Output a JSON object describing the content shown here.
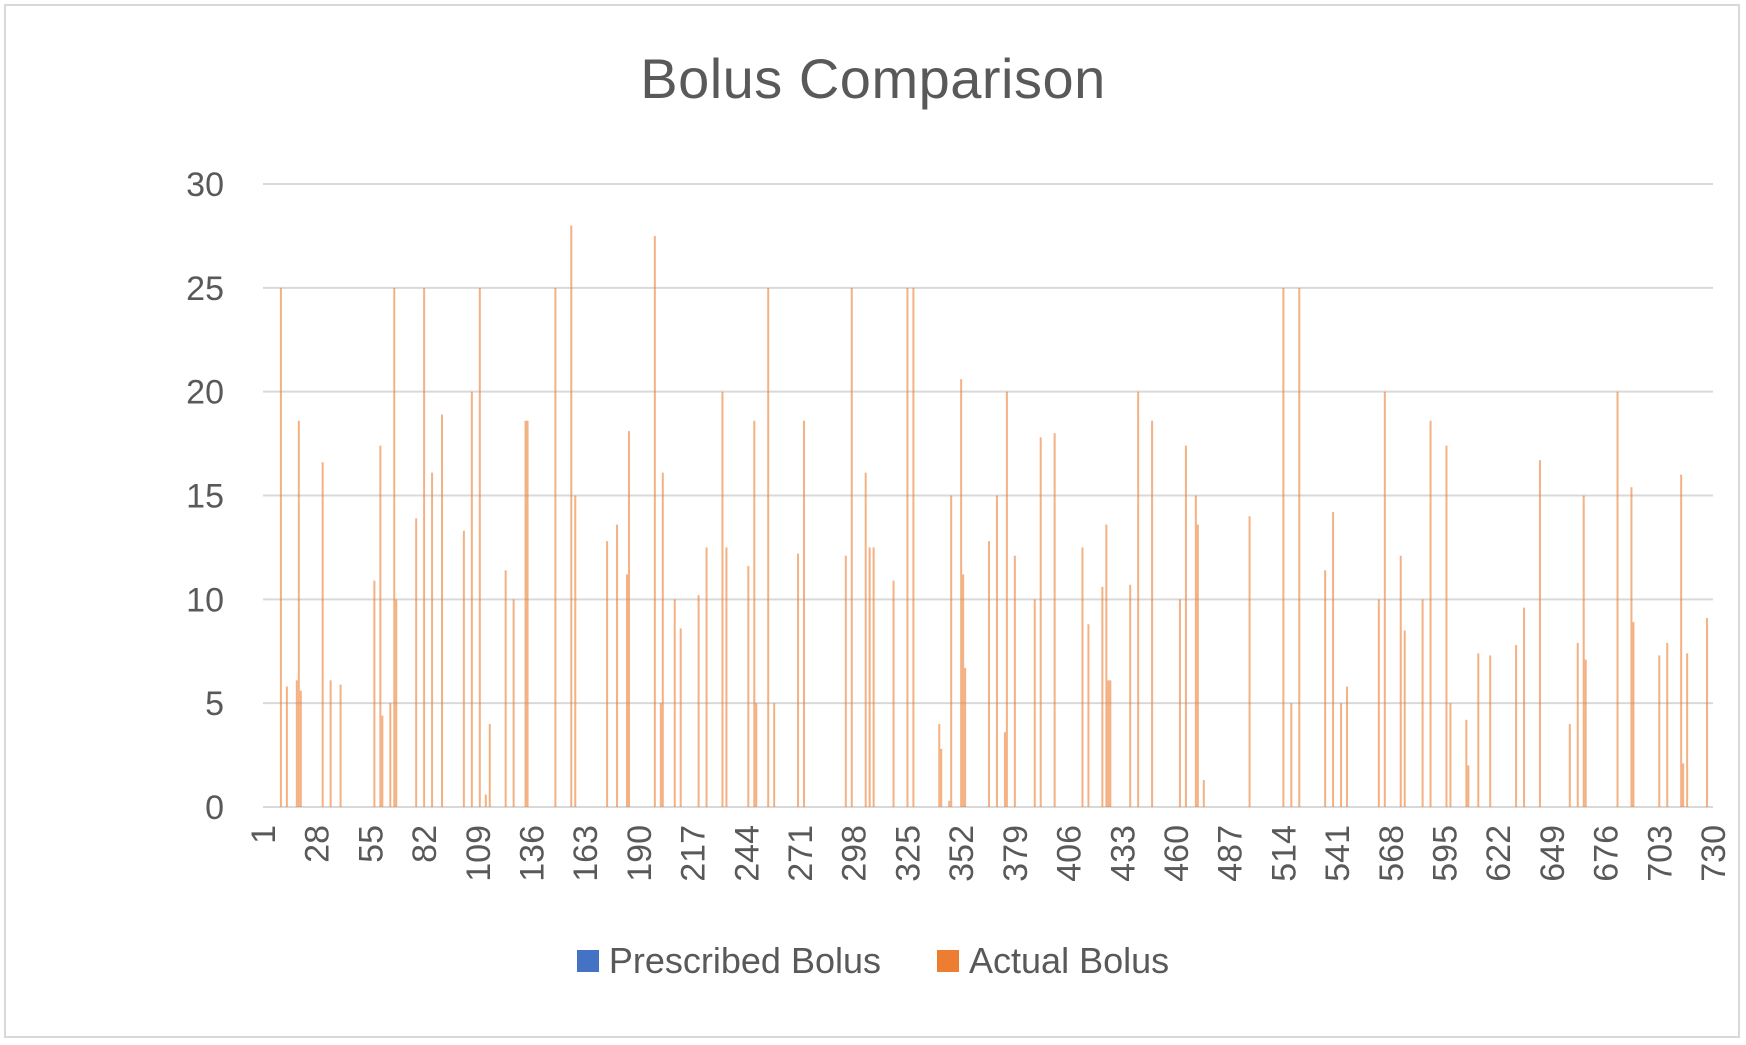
{
  "chart_data": {
    "type": "bar",
    "title": "Bolus Comparison",
    "xlabel": "",
    "ylabel": "",
    "ylim": [
      0,
      30
    ],
    "yticks": [
      0,
      5,
      10,
      15,
      20,
      25,
      30
    ],
    "xlim": [
      1,
      730
    ],
    "xticks": [
      1,
      28,
      55,
      82,
      109,
      136,
      163,
      190,
      217,
      244,
      271,
      298,
      325,
      352,
      379,
      406,
      433,
      460,
      487,
      514,
      541,
      568,
      595,
      622,
      649,
      676,
      703,
      730
    ],
    "grid": true,
    "legend_position": "bottom",
    "series": [
      {
        "name": "Prescribed Bolus",
        "color": "#4472C4",
        "points": []
      },
      {
        "name": "Actual Bolus",
        "color": "#ED7D31",
        "points": [
          [
            10,
            25
          ],
          [
            13,
            5.8
          ],
          [
            18,
            6.1
          ],
          [
            19,
            18.6
          ],
          [
            20,
            5.6
          ],
          [
            31,
            16.6
          ],
          [
            35,
            6.1
          ],
          [
            40,
            5.9
          ],
          [
            57,
            10.9
          ],
          [
            60,
            17.4
          ],
          [
            61,
            4.4
          ],
          [
            65,
            5
          ],
          [
            67,
            25
          ],
          [
            68,
            10
          ],
          [
            78,
            13.9
          ],
          [
            82,
            25
          ],
          [
            86,
            16.1
          ],
          [
            91,
            18.9
          ],
          [
            102,
            13.3
          ],
          [
            106,
            20
          ],
          [
            110,
            25
          ],
          [
            113,
            0.6
          ],
          [
            115,
            4
          ],
          [
            123,
            11.4
          ],
          [
            127,
            10
          ],
          [
            133,
            18.6
          ],
          [
            134,
            18.6
          ],
          [
            148,
            25
          ],
          [
            156,
            28
          ],
          [
            158,
            15
          ],
          [
            174,
            12.8
          ],
          [
            179,
            13.6
          ],
          [
            184,
            11.2
          ],
          [
            185,
            18.1
          ],
          [
            198,
            27.5
          ],
          [
            201,
            5
          ],
          [
            202,
            16.1
          ],
          [
            208,
            10
          ],
          [
            211,
            8.6
          ],
          [
            220,
            10.2
          ],
          [
            224,
            12.5
          ],
          [
            232,
            20
          ],
          [
            234,
            12.5
          ],
          [
            245,
            11.6
          ],
          [
            248,
            18.6
          ],
          [
            249,
            5
          ],
          [
            255,
            25
          ],
          [
            258,
            5
          ],
          [
            270,
            12.2
          ],
          [
            273,
            18.6
          ],
          [
            294,
            12.1
          ],
          [
            297,
            25
          ],
          [
            304,
            16.1
          ],
          [
            306,
            12.5
          ],
          [
            308,
            12.5
          ],
          [
            318,
            10.9
          ],
          [
            325,
            25
          ],
          [
            328,
            25
          ],
          [
            341,
            4
          ],
          [
            342,
            2.8
          ],
          [
            346,
            0.3
          ],
          [
            347,
            15
          ],
          [
            352,
            20.6
          ],
          [
            353,
            11.2
          ],
          [
            354,
            6.7
          ],
          [
            366,
            12.8
          ],
          [
            370,
            15
          ],
          [
            374,
            3.6
          ],
          [
            375,
            20
          ],
          [
            379,
            12.1
          ],
          [
            389,
            10
          ],
          [
            392,
            17.8
          ],
          [
            399,
            18
          ],
          [
            413,
            12.5
          ],
          [
            416,
            8.8
          ],
          [
            423,
            10.6
          ],
          [
            425,
            13.6
          ],
          [
            426,
            6.1
          ],
          [
            427,
            6.1
          ],
          [
            437,
            10.7
          ],
          [
            441,
            20
          ],
          [
            448,
            18.6
          ],
          [
            462,
            10
          ],
          [
            465,
            17.4
          ],
          [
            470,
            15
          ],
          [
            471,
            13.6
          ],
          [
            474,
            1.3
          ],
          [
            497,
            14
          ],
          [
            514,
            25
          ],
          [
            518,
            5
          ],
          [
            522,
            25
          ],
          [
            535,
            11.4
          ],
          [
            539,
            14.2
          ],
          [
            543,
            5
          ],
          [
            546,
            5.8
          ],
          [
            562,
            10
          ],
          [
            565,
            20
          ],
          [
            573,
            12.1
          ],
          [
            575,
            8.5
          ],
          [
            584,
            10
          ],
          [
            588,
            18.6
          ],
          [
            596,
            17.4
          ],
          [
            598,
            5
          ],
          [
            606,
            4.2
          ],
          [
            607,
            2
          ],
          [
            612,
            7.4
          ],
          [
            618,
            7.3
          ],
          [
            631,
            7.8
          ],
          [
            635,
            9.6
          ],
          [
            643,
            16.7
          ],
          [
            658,
            4
          ],
          [
            662,
            7.9
          ],
          [
            665,
            15
          ],
          [
            666,
            7.1
          ],
          [
            682,
            20
          ],
          [
            689,
            15.4
          ],
          [
            690,
            8.9
          ],
          [
            703,
            7.3
          ],
          [
            707,
            7.9
          ],
          [
            714,
            16
          ],
          [
            715,
            2.1
          ],
          [
            717,
            7.4
          ],
          [
            727,
            9.1
          ]
        ]
      }
    ]
  }
}
